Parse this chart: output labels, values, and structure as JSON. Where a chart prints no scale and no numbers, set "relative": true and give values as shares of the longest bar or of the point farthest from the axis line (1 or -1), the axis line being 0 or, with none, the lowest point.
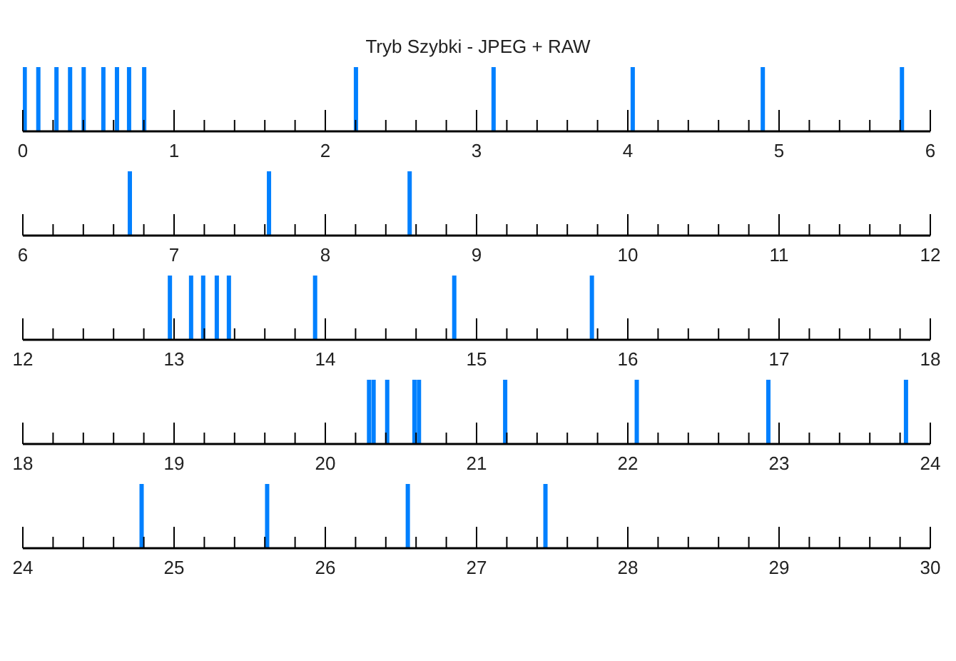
{
  "chart_data": [
    {
      "type": "bar",
      "title": "Tryb Szybki - JPEG + RAW",
      "relative": true,
      "tick_labels": "x",
      "color": "#0080ff",
      "x": [
        0.01,
        0.1,
        0.22,
        0.31,
        0.4,
        0.53,
        0.62,
        0.7,
        0.8,
        2.2,
        3.11,
        4.03,
        4.89,
        5.81
      ],
      "values": [
        1,
        1,
        1,
        1,
        1,
        1,
        1,
        1,
        1,
        1,
        1,
        1,
        1,
        1
      ],
      "xlim": [
        0,
        6
      ],
      "xticks": [
        0,
        {
          "value": 0.2,
          "label": null
        },
        {
          "value": 0.4,
          "label": null
        },
        {
          "value": 0.6,
          "label": null
        },
        {
          "value": 0.8,
          "label": null
        },
        1,
        {
          "value": 1.2,
          "label": null
        },
        {
          "value": 1.4,
          "label": null
        },
        {
          "value": 1.6,
          "label": null
        },
        {
          "value": 1.8,
          "label": null
        },
        2,
        {
          "value": 2.2,
          "label": null
        },
        {
          "value": 2.4,
          "label": null
        },
        {
          "value": 2.6,
          "label": null
        },
        {
          "value": 2.8,
          "label": null
        },
        3,
        {
          "value": 3.2,
          "label": null
        },
        {
          "value": 3.4,
          "label": null
        },
        {
          "value": 3.6,
          "label": null
        },
        {
          "value": 3.8,
          "label": null
        },
        4,
        {
          "value": 4.2,
          "label": null
        },
        {
          "value": 4.4,
          "label": null
        },
        {
          "value": 4.6,
          "label": null
        },
        {
          "value": 4.8,
          "label": null
        },
        5,
        {
          "value": 5.2,
          "label": null
        },
        {
          "value": 5.4,
          "label": null
        },
        {
          "value": 5.6,
          "label": null
        },
        {
          "value": 5.8,
          "label": null
        },
        6
      ]
    },
    {
      "type": "bar",
      "relative": true,
      "tick_labels": "x",
      "color": "#0080ff",
      "x": [
        6.71,
        7.63,
        8.56
      ],
      "values": [
        1,
        1,
        1
      ],
      "xlim": [
        6,
        12
      ],
      "xticks": [
        6,
        {
          "value": 6.2,
          "label": null
        },
        {
          "value": 6.4,
          "label": null
        },
        {
          "value": 6.6,
          "label": null
        },
        {
          "value": 6.8,
          "label": null
        },
        7,
        {
          "value": 7.2,
          "label": null
        },
        {
          "value": 7.4,
          "label": null
        },
        {
          "value": 7.6,
          "label": null
        },
        {
          "value": 7.8,
          "label": null
        },
        8,
        {
          "value": 8.2,
          "label": null
        },
        {
          "value": 8.4,
          "label": null
        },
        {
          "value": 8.6,
          "label": null
        },
        {
          "value": 8.8,
          "label": null
        },
        9,
        {
          "value": 9.2,
          "label": null
        },
        {
          "value": 9.4,
          "label": null
        },
        {
          "value": 9.6,
          "label": null
        },
        {
          "value": 9.8,
          "label": null
        },
        10,
        {
          "value": 10.2,
          "label": null
        },
        {
          "value": 10.4,
          "label": null
        },
        {
          "value": 10.6,
          "label": null
        },
        {
          "value": 10.8,
          "label": null
        },
        11,
        {
          "value": 11.2,
          "label": null
        },
        {
          "value": 11.4,
          "label": null
        },
        {
          "value": 11.6,
          "label": null
        },
        {
          "value": 11.8,
          "label": null
        },
        12
      ]
    },
    {
      "type": "bar",
      "relative": true,
      "tick_labels": "x",
      "color": "#0080ff",
      "x": [
        12.97,
        13.11,
        13.19,
        13.28,
        13.36,
        13.93,
        14.85,
        15.76
      ],
      "values": [
        1,
        1,
        1,
        1,
        1,
        1,
        1,
        1
      ],
      "xlim": [
        12,
        18
      ],
      "xticks": [
        12,
        {
          "value": 12.2,
          "label": null
        },
        {
          "value": 12.4,
          "label": null
        },
        {
          "value": 12.6,
          "label": null
        },
        {
          "value": 12.8,
          "label": null
        },
        13,
        {
          "value": 13.2,
          "label": null
        },
        {
          "value": 13.4,
          "label": null
        },
        {
          "value": 13.6,
          "label": null
        },
        {
          "value": 13.8,
          "label": null
        },
        14,
        {
          "value": 14.2,
          "label": null
        },
        {
          "value": 14.4,
          "label": null
        },
        {
          "value": 14.6,
          "label": null
        },
        {
          "value": 14.8,
          "label": null
        },
        15,
        {
          "value": 15.2,
          "label": null
        },
        {
          "value": 15.4,
          "label": null
        },
        {
          "value": 15.6,
          "label": null
        },
        {
          "value": 15.8,
          "label": null
        },
        16,
        {
          "value": 16.2,
          "label": null
        },
        {
          "value": 16.4,
          "label": null
        },
        {
          "value": 16.6,
          "label": null
        },
        {
          "value": 16.8,
          "label": null
        },
        17,
        {
          "value": 17.2,
          "label": null
        },
        {
          "value": 17.4,
          "label": null
        },
        {
          "value": 17.6,
          "label": null
        },
        {
          "value": 17.8,
          "label": null
        },
        18
      ]
    },
    {
      "type": "bar",
      "relative": true,
      "tick_labels": "x",
      "color": "#0080ff",
      "x": [
        20.29,
        20.32,
        20.41,
        20.59,
        20.62,
        21.19,
        22.06,
        22.93,
        23.84
      ],
      "values": [
        1,
        1,
        1,
        1,
        1,
        1,
        1,
        1,
        1
      ],
      "xlim": [
        18,
        24
      ],
      "xticks": [
        18,
        {
          "value": 18.2,
          "label": null
        },
        {
          "value": 18.4,
          "label": null
        },
        {
          "value": 18.6,
          "label": null
        },
        {
          "value": 18.8,
          "label": null
        },
        19,
        {
          "value": 19.2,
          "label": null
        },
        {
          "value": 19.4,
          "label": null
        },
        {
          "value": 19.6,
          "label": null
        },
        {
          "value": 19.8,
          "label": null
        },
        20,
        {
          "value": 20.2,
          "label": null
        },
        {
          "value": 20.4,
          "label": null
        },
        {
          "value": 20.6,
          "label": null
        },
        {
          "value": 20.8,
          "label": null
        },
        21,
        {
          "value": 21.2,
          "label": null
        },
        {
          "value": 21.4,
          "label": null
        },
        {
          "value": 21.6,
          "label": null
        },
        {
          "value": 21.8,
          "label": null
        },
        22,
        {
          "value": 22.2,
          "label": null
        },
        {
          "value": 22.4,
          "label": null
        },
        {
          "value": 22.6,
          "label": null
        },
        {
          "value": 22.8,
          "label": null
        },
        23,
        {
          "value": 23.2,
          "label": null
        },
        {
          "value": 23.4,
          "label": null
        },
        {
          "value": 23.6,
          "label": null
        },
        {
          "value": 23.8,
          "label": null
        },
        24
      ]
    },
    {
      "type": "bar",
      "relative": true,
      "tick_labels": "x",
      "color": "#0080ff",
      "x": [
        24.79,
        25.62,
        26.55,
        27.46
      ],
      "values": [
        1,
        1,
        1,
        1
      ],
      "xlim": [
        24,
        30
      ],
      "xticks": [
        24,
        {
          "value": 24.2,
          "label": null
        },
        {
          "value": 24.4,
          "label": null
        },
        {
          "value": 24.6,
          "label": null
        },
        {
          "value": 24.8,
          "label": null
        },
        25,
        {
          "value": 25.2,
          "label": null
        },
        {
          "value": 25.4,
          "label": null
        },
        {
          "value": 25.6,
          "label": null
        },
        {
          "value": 25.8,
          "label": null
        },
        26,
        {
          "value": 26.2,
          "label": null
        },
        {
          "value": 26.4,
          "label": null
        },
        {
          "value": 26.6,
          "label": null
        },
        {
          "value": 26.8,
          "label": null
        },
        27,
        {
          "value": 27.2,
          "label": null
        },
        {
          "value": 27.4,
          "label": null
        },
        {
          "value": 27.6,
          "label": null
        },
        {
          "value": 27.8,
          "label": null
        },
        28,
        {
          "value": 28.2,
          "label": null
        },
        {
          "value": 28.4,
          "label": null
        },
        {
          "value": 28.6,
          "label": null
        },
        {
          "value": 28.8,
          "label": null
        },
        29,
        {
          "value": 29.2,
          "label": null
        },
        {
          "value": 29.4,
          "label": null
        },
        {
          "value": 29.6,
          "label": null
        },
        {
          "value": 29.8,
          "label": null
        },
        30
      ]
    }
  ]
}
